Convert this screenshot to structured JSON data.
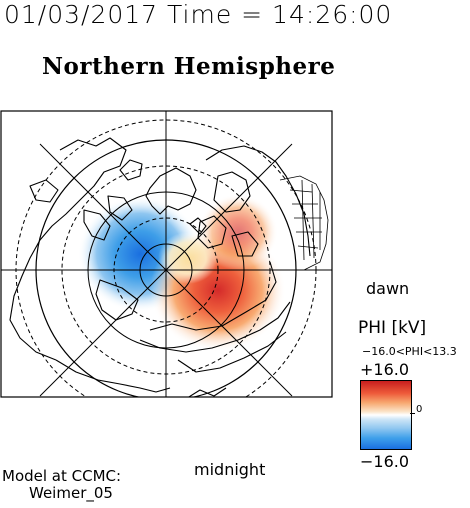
{
  "header": {
    "datetime": "01/03/2017 Time = 14:26:00",
    "title": "Northern Hemisphere"
  },
  "plot": {
    "dawn_label": "dawn",
    "midnight_label": "midnight",
    "colors": {
      "negative": "#1a6fe0",
      "positive": "#d42a2a",
      "frame": "#000000"
    }
  },
  "colorbar": {
    "title": "PHI [kV]",
    "range_text": "−16.0<PHI<13.3",
    "max_label": "+16.0",
    "zero_label": "0",
    "min_label": "−16.0"
  },
  "credit": {
    "line1": "Model at CCMC:",
    "line2": "Weimer_05"
  }
}
